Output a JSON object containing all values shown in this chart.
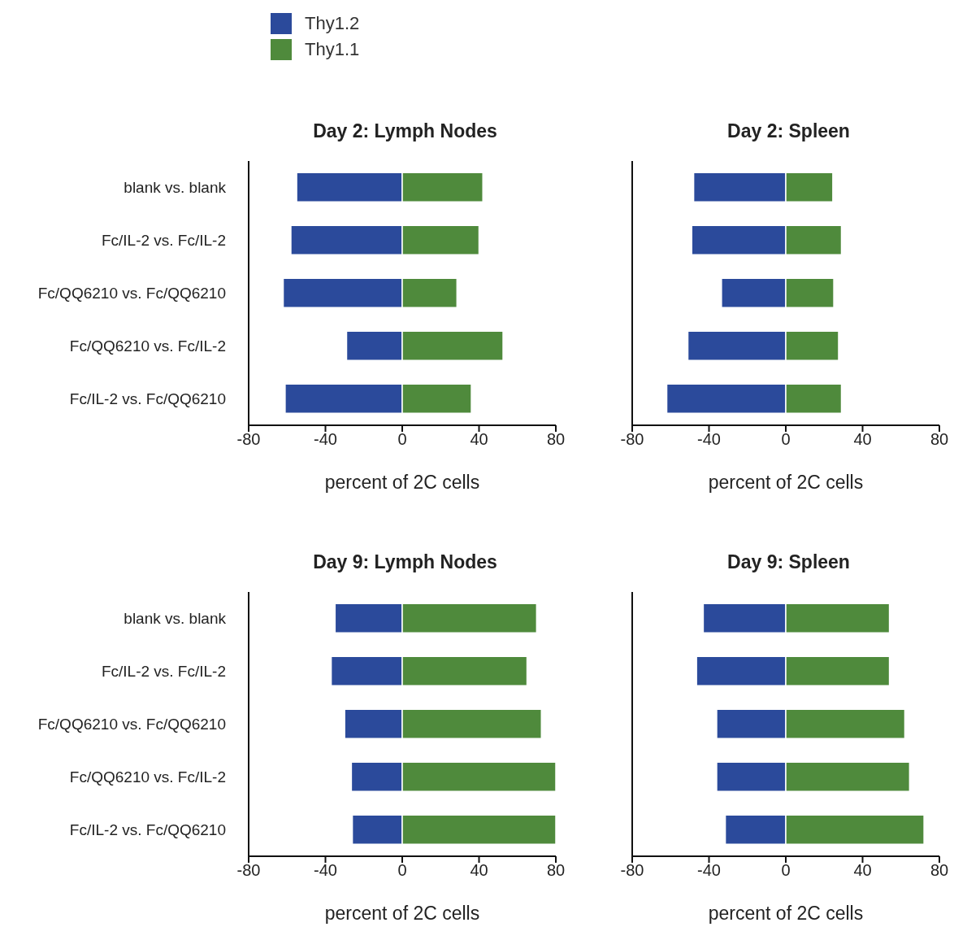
{
  "chart_data": [
    {
      "type": "bar",
      "orientation": "horizontal",
      "stacked": true,
      "title": "Day 2: Lymph Nodes",
      "xlabel": "percent of 2C cells",
      "legend": "top left",
      "categories": [
        "blank vs. blank",
        "Fc/IL-2 vs. Fc/IL-2",
        "Fc/QQ6210 vs. Fc/QQ6210",
        "Fc/QQ6210 vs. Fc/IL-2",
        "Fc/IL-2 vs. Fc/QQ6210"
      ],
      "xlim": [
        -80,
        80
      ],
      "xticks": [
        -80,
        -40,
        0,
        40,
        80
      ],
      "series": [
        {
          "name": "Thy1.2",
          "color": "#2b4a9b",
          "values": [
            -55,
            -58,
            -62,
            -29,
            -61
          ]
        },
        {
          "name": "Thy1.1",
          "color": "#4f8a3c",
          "values": [
            42,
            40,
            28.5,
            52.5,
            36
          ]
        }
      ]
    },
    {
      "type": "bar",
      "orientation": "horizontal",
      "stacked": true,
      "title": "Day 2: Spleen",
      "xlabel": "percent of 2C cells",
      "tick_labels": "x",
      "categories": [
        null,
        null,
        null,
        null,
        null
      ],
      "xlim": [
        -80,
        80
      ],
      "xticks": [
        -80,
        -40,
        0,
        40,
        80
      ],
      "series": [
        {
          "color": "#2b4a9b",
          "values": [
            -48,
            -49,
            -33.5,
            -51,
            -62
          ]
        },
        {
          "color": "#4f8a3c",
          "values": [
            24.5,
            29,
            25,
            27.5,
            29
          ]
        }
      ]
    },
    {
      "type": "bar",
      "orientation": "horizontal",
      "stacked": true,
      "title": "Day 9: Lymph Nodes",
      "xlabel": "percent of 2C cells",
      "categories": [
        "blank vs. blank",
        "Fc/IL-2 vs. Fc/IL-2",
        "Fc/QQ6210 vs. Fc/QQ6210",
        "Fc/QQ6210 vs. Fc/IL-2",
        "Fc/IL-2 vs. Fc/QQ6210"
      ],
      "xlim": [
        -80,
        80
      ],
      "xticks": [
        -80,
        -40,
        0,
        40,
        80
      ],
      "series": [
        {
          "color": "#2b4a9b",
          "values": [
            -35,
            -37,
            -30,
            -26.5,
            -26
          ]
        },
        {
          "color": "#4f8a3c",
          "values": [
            70,
            65,
            72.5,
            80,
            80
          ]
        }
      ]
    },
    {
      "type": "bar",
      "orientation": "horizontal",
      "stacked": true,
      "title": "Day 9: Spleen",
      "xlabel": "percent of 2C cells",
      "tick_labels": "x",
      "categories": [
        null,
        null,
        null,
        null,
        null
      ],
      "xlim": [
        -80,
        80
      ],
      "xticks": [
        -80,
        -40,
        0,
        40,
        80
      ],
      "series": [
        {
          "color": "#2b4a9b",
          "values": [
            -43,
            -46.5,
            -36,
            -36,
            -31.5
          ]
        },
        {
          "color": "#4f8a3c",
          "values": [
            54,
            54,
            62,
            64.5,
            72
          ]
        }
      ]
    }
  ]
}
